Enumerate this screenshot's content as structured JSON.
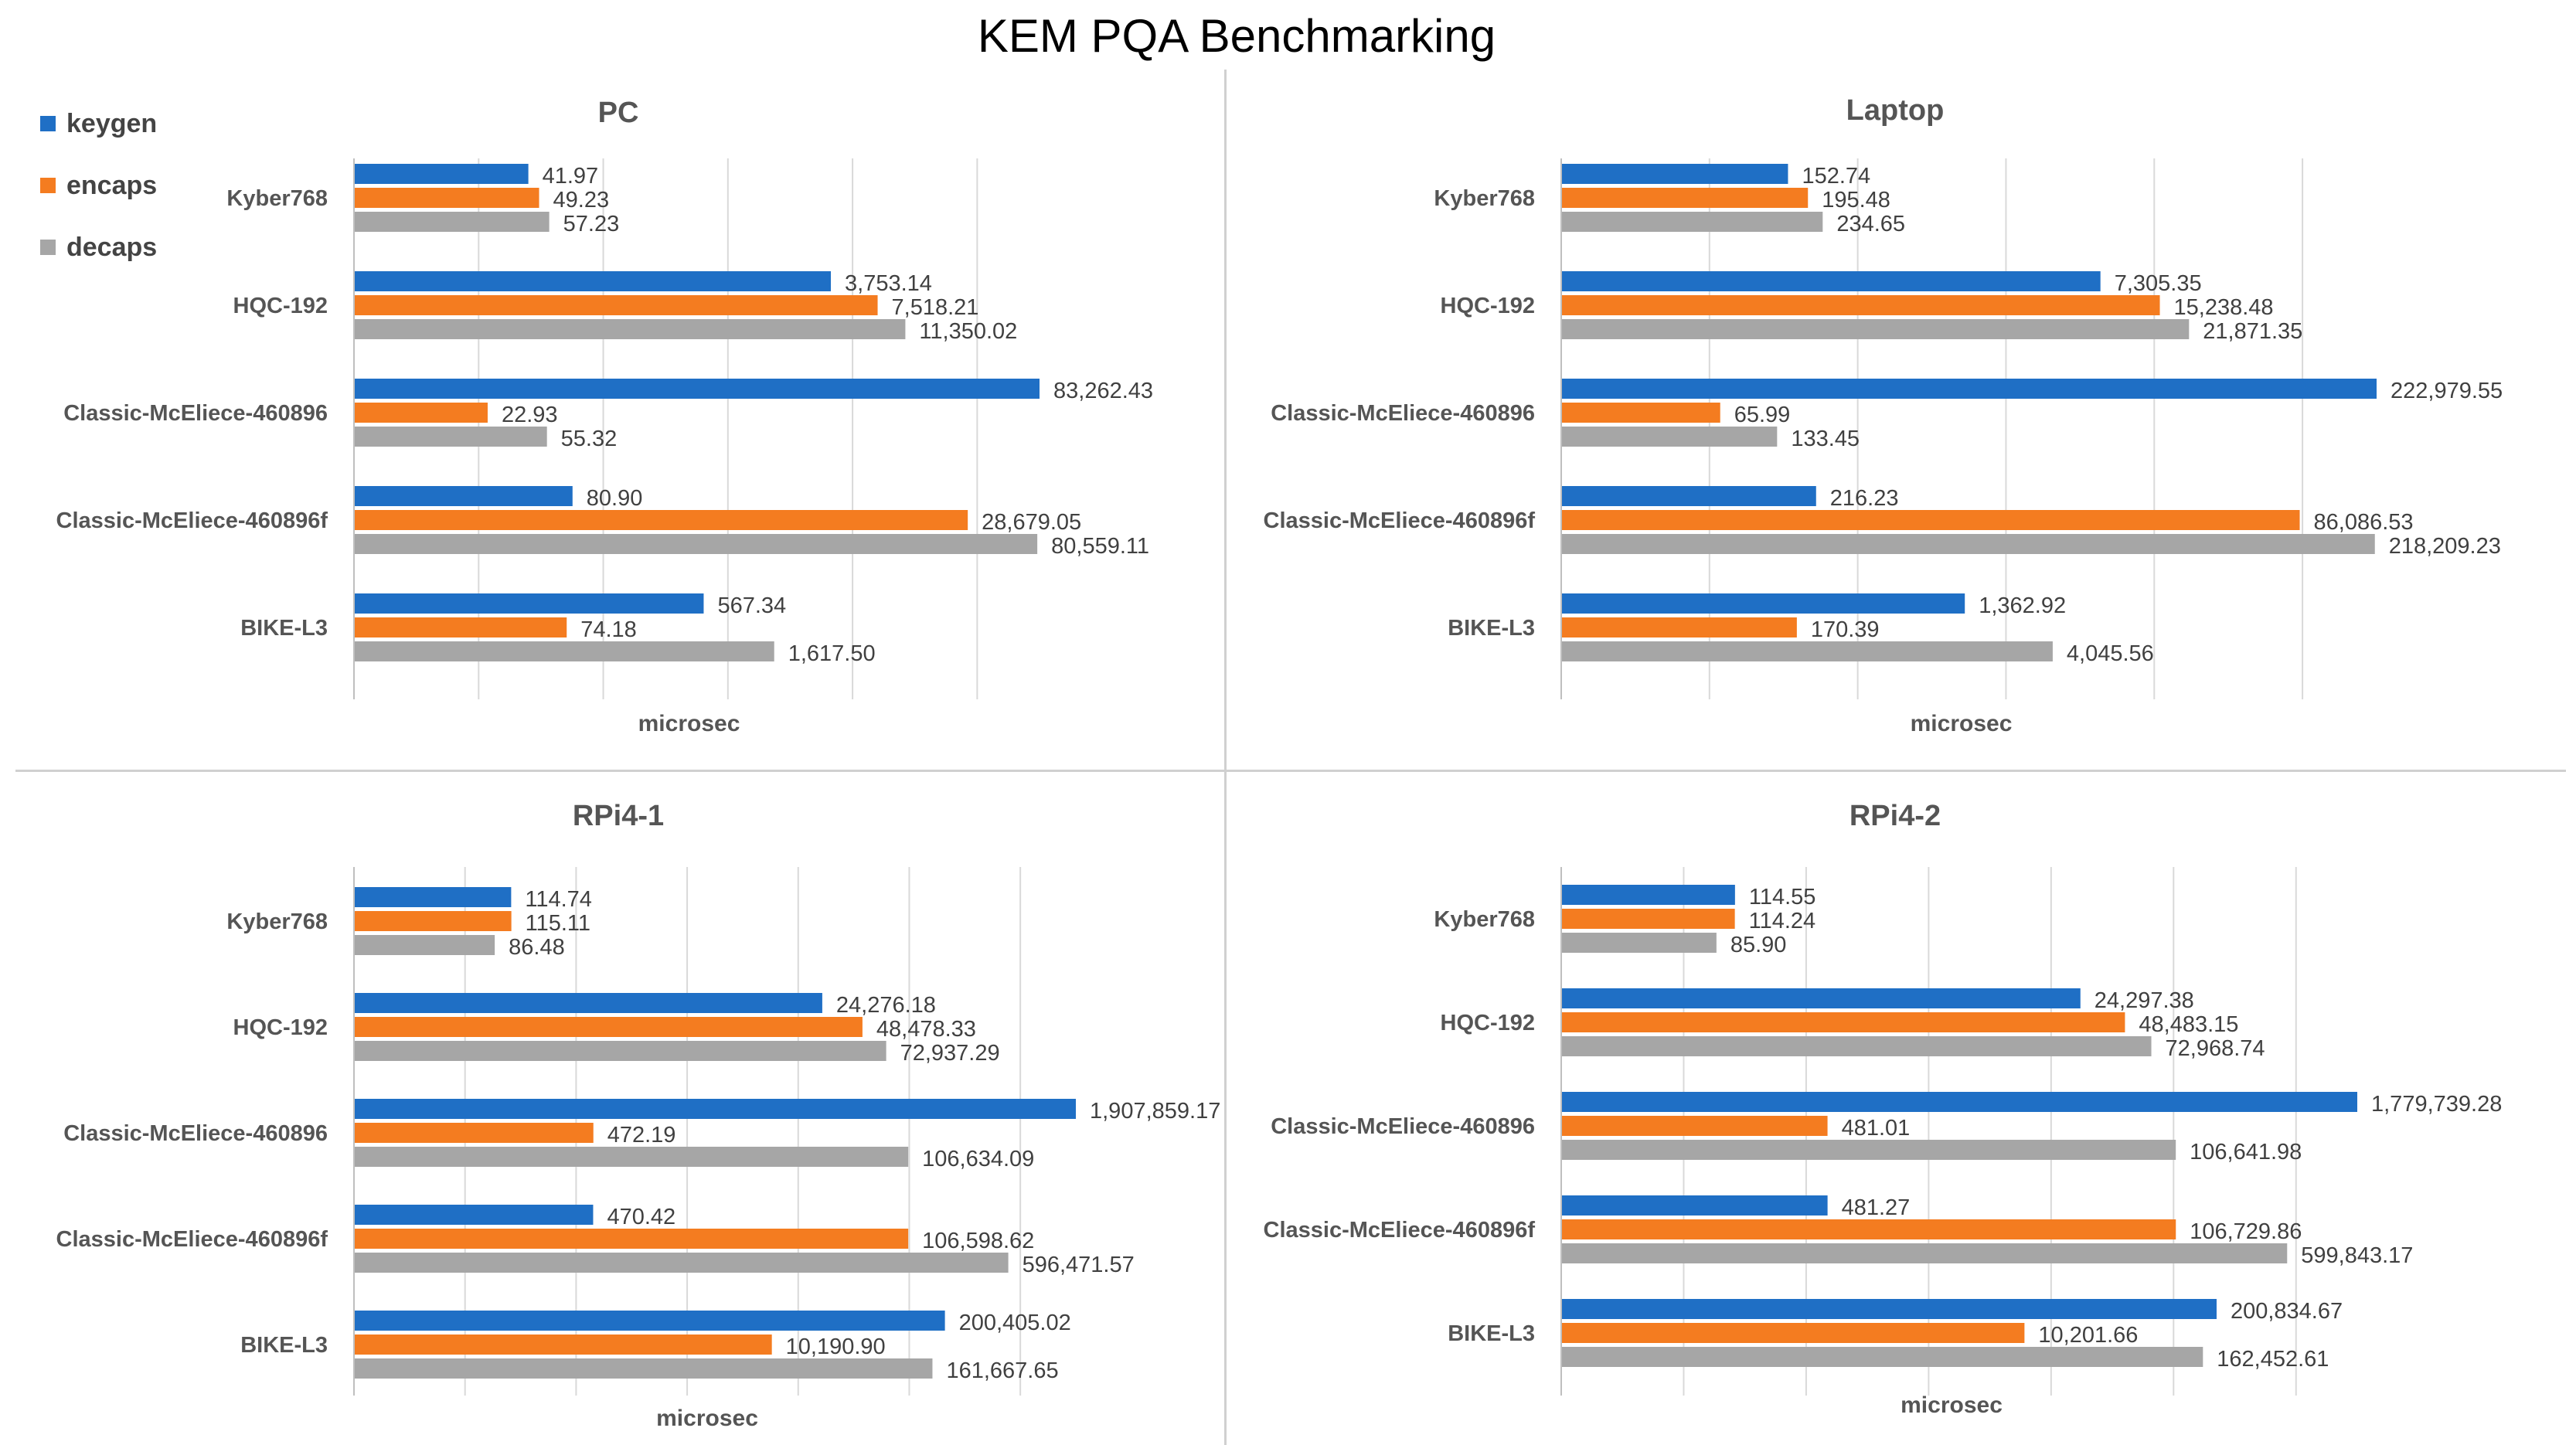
{
  "title": "KEM PQA Benchmarking",
  "legend": [
    {
      "name": "keygen",
      "color": "#1F6FC5"
    },
    {
      "name": "encaps",
      "color": "#F47C20"
    },
    {
      "name": "decaps",
      "color": "#A6A6A6"
    }
  ],
  "chart_data": [
    {
      "type": "bar",
      "orientation": "horizontal",
      "title": "PC",
      "xlabel": "microsec",
      "scale": "log",
      "categories": [
        "Kyber768",
        "HQC-192",
        "Classic-McEliece-460896",
        "Classic-McEliece-460896f",
        "BIKE-L3"
      ],
      "series": [
        {
          "name": "keygen",
          "values": [
            41.97,
            3753.14,
            83262.43,
            80.9,
            567.34
          ],
          "labels": [
            "41.97",
            "3,753.14",
            "83,262.43",
            "80.90",
            "567.34"
          ]
        },
        {
          "name": "encaps",
          "values": [
            49.23,
            7518.21,
            22.93,
            28679.05,
            74.18
          ],
          "labels": [
            "49.23",
            "7,518.21",
            "22.93",
            "28,679.05",
            "74.18"
          ]
        },
        {
          "name": "decaps",
          "values": [
            57.23,
            11350.02,
            55.32,
            80559.11,
            1617.5
          ],
          "labels": [
            "57.23",
            "11,350.02",
            "55.32",
            "80,559.11",
            "1,617.50"
          ]
        }
      ]
    },
    {
      "type": "bar",
      "orientation": "horizontal",
      "title": "Laptop",
      "xlabel": "microsec",
      "scale": "log",
      "categories": [
        "Kyber768",
        "HQC-192",
        "Classic-McEliece-460896",
        "Classic-McEliece-460896f",
        "BIKE-L3"
      ],
      "series": [
        {
          "name": "keygen",
          "values": [
            152.74,
            7305.35,
            222979.55,
            216.23,
            1362.92
          ],
          "labels": [
            "152.74",
            "7,305.35",
            "222,979.55",
            "216.23",
            "1,362.92"
          ]
        },
        {
          "name": "encaps",
          "values": [
            195.48,
            15238.48,
            65.99,
            86086.53,
            170.39
          ],
          "labels": [
            "195.48",
            "15,238.48",
            "65.99",
            "86,086.53",
            "170.39"
          ]
        },
        {
          "name": "decaps",
          "values": [
            234.65,
            21871.35,
            133.45,
            218209.23,
            4045.56
          ],
          "labels": [
            "234.65",
            "21,871.35",
            "133.45",
            "218,209.23",
            "4,045.56"
          ]
        }
      ]
    },
    {
      "type": "bar",
      "orientation": "horizontal",
      "title": "RPi4-1",
      "xlabel": "microsec",
      "scale": "log",
      "categories": [
        "Kyber768",
        "HQC-192",
        "Classic-McEliece-460896",
        "Classic-McEliece-460896f",
        "BIKE-L3"
      ],
      "series": [
        {
          "name": "keygen",
          "values": [
            114.74,
            24276.18,
            1907859.17,
            470.42,
            200405.02
          ],
          "labels": [
            "114.74",
            "24,276.18",
            "1,907,859.17",
            "470.42",
            "200,405.02"
          ]
        },
        {
          "name": "encaps",
          "values": [
            115.11,
            48478.33,
            472.19,
            106598.62,
            10190.9
          ],
          "labels": [
            "115.11",
            "48,478.33",
            "472.19",
            "106,598.62",
            "10,190.90"
          ]
        },
        {
          "name": "decaps",
          "values": [
            86.48,
            72937.29,
            106634.09,
            596471.57,
            161667.65
          ],
          "labels": [
            "86.48",
            "72,937.29",
            "106,634.09",
            "596,471.57",
            "161,667.65"
          ]
        }
      ]
    },
    {
      "type": "bar",
      "orientation": "horizontal",
      "title": "RPi4-2",
      "xlabel": "microsec",
      "scale": "log",
      "categories": [
        "Kyber768",
        "HQC-192",
        "Classic-McEliece-460896",
        "Classic-McEliece-460896f",
        "BIKE-L3"
      ],
      "series": [
        {
          "name": "keygen",
          "values": [
            114.55,
            24297.38,
            1779739.28,
            481.27,
            200834.67
          ],
          "labels": [
            "114.55",
            "24,297.38",
            "1,779,739.28",
            "481.27",
            "200,834.67"
          ]
        },
        {
          "name": "encaps",
          "values": [
            114.24,
            48483.15,
            481.01,
            106729.86,
            10201.66
          ],
          "labels": [
            "114.24",
            "48,483.15",
            "481.01",
            "106,729.86",
            "10,201.66"
          ]
        },
        {
          "name": "decaps",
          "values": [
            85.9,
            72968.74,
            106641.98,
            599843.17,
            162452.61
          ],
          "labels": [
            "85.90",
            "72,968.74",
            "106,641.98",
            "599,843.17",
            "162,452.61"
          ]
        }
      ]
    }
  ]
}
